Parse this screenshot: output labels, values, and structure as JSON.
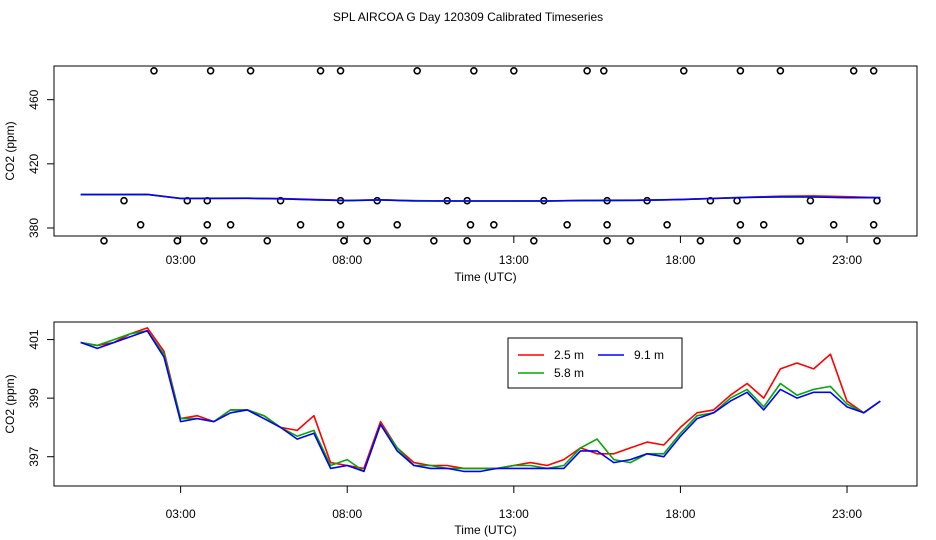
{
  "title": "SPL AIRCOA G  Day 120309  Calibrated Timeseries",
  "chart_data": [
    {
      "type": "scatter+line",
      "xlabel": "Time (UTC)",
      "ylabel": "CO2 (ppm)",
      "xlim": [
        -0.8,
        25.1
      ],
      "ylim": [
        375,
        481
      ],
      "xticks": [
        3,
        8,
        13,
        18,
        23
      ],
      "xtick_labels": [
        "03:00",
        "08:00",
        "13:00",
        "18:00",
        "23:00"
      ],
      "yticks": [
        380,
        420,
        460
      ],
      "ytick_labels": [
        "380",
        "420",
        "460"
      ],
      "outliers": [
        {
          "x": 2.2,
          "y": 478
        },
        {
          "x": 3.9,
          "y": 478
        },
        {
          "x": 5.1,
          "y": 478
        },
        {
          "x": 7.2,
          "y": 478
        },
        {
          "x": 7.8,
          "y": 478
        },
        {
          "x": 10.1,
          "y": 478
        },
        {
          "x": 11.8,
          "y": 478
        },
        {
          "x": 13.0,
          "y": 478
        },
        {
          "x": 15.2,
          "y": 478
        },
        {
          "x": 15.7,
          "y": 478
        },
        {
          "x": 18.1,
          "y": 478
        },
        {
          "x": 19.8,
          "y": 478
        },
        {
          "x": 21.0,
          "y": 478
        },
        {
          "x": 23.2,
          "y": 478
        },
        {
          "x": 23.8,
          "y": 478
        },
        {
          "x": 1.3,
          "y": 397
        },
        {
          "x": 3.2,
          "y": 397
        },
        {
          "x": 3.8,
          "y": 397
        },
        {
          "x": 6.0,
          "y": 397
        },
        {
          "x": 7.8,
          "y": 397
        },
        {
          "x": 8.9,
          "y": 397
        },
        {
          "x": 11.0,
          "y": 397
        },
        {
          "x": 11.6,
          "y": 397
        },
        {
          "x": 13.9,
          "y": 397
        },
        {
          "x": 15.8,
          "y": 397
        },
        {
          "x": 17.0,
          "y": 397
        },
        {
          "x": 18.9,
          "y": 397
        },
        {
          "x": 19.7,
          "y": 397
        },
        {
          "x": 21.9,
          "y": 397
        },
        {
          "x": 23.9,
          "y": 397
        },
        {
          "x": 1.8,
          "y": 382
        },
        {
          "x": 3.8,
          "y": 382
        },
        {
          "x": 4.5,
          "y": 382
        },
        {
          "x": 6.6,
          "y": 382
        },
        {
          "x": 7.8,
          "y": 382
        },
        {
          "x": 9.5,
          "y": 382
        },
        {
          "x": 11.7,
          "y": 382
        },
        {
          "x": 12.4,
          "y": 382
        },
        {
          "x": 14.6,
          "y": 382
        },
        {
          "x": 15.8,
          "y": 382
        },
        {
          "x": 17.6,
          "y": 382
        },
        {
          "x": 19.8,
          "y": 382
        },
        {
          "x": 20.5,
          "y": 382
        },
        {
          "x": 22.6,
          "y": 382
        },
        {
          "x": 23.8,
          "y": 382
        },
        {
          "x": 0.7,
          "y": 372
        },
        {
          "x": 2.9,
          "y": 372
        },
        {
          "x": 3.7,
          "y": 372
        },
        {
          "x": 5.6,
          "y": 372
        },
        {
          "x": 7.9,
          "y": 372
        },
        {
          "x": 8.6,
          "y": 372
        },
        {
          "x": 10.6,
          "y": 372
        },
        {
          "x": 11.6,
          "y": 372
        },
        {
          "x": 13.6,
          "y": 372
        },
        {
          "x": 15.8,
          "y": 372
        },
        {
          "x": 16.5,
          "y": 372
        },
        {
          "x": 18.6,
          "y": 372
        },
        {
          "x": 19.7,
          "y": 372
        },
        {
          "x": 21.6,
          "y": 372
        },
        {
          "x": 23.9,
          "y": 372
        }
      ],
      "line_x": [
        0,
        1,
        2,
        3,
        4,
        5,
        6,
        7,
        8,
        9,
        10,
        11,
        12,
        13,
        14,
        15,
        16,
        17,
        18,
        19,
        20,
        21,
        22,
        23,
        24
      ],
      "series": [
        {
          "name": "2.5 m",
          "color": "#ff0000",
          "values": [
            400.8,
            400.9,
            401.0,
            398.5,
            398.6,
            398.6,
            398.3,
            397.8,
            397.2,
            397.6,
            397.0,
            396.9,
            396.8,
            396.8,
            396.9,
            397.2,
            397.3,
            397.4,
            397.8,
            398.5,
            399.2,
            399.8,
            400.0,
            399.5,
            398.9
          ]
        },
        {
          "name": "5.8 m",
          "color": "#00aa00",
          "values": [
            400.8,
            400.8,
            400.9,
            398.4,
            398.5,
            398.6,
            398.2,
            397.6,
            397.1,
            397.5,
            397.0,
            396.8,
            396.8,
            396.8,
            396.8,
            397.1,
            397.2,
            397.3,
            397.7,
            398.4,
            399.1,
            399.5,
            399.4,
            399.0,
            398.9
          ]
        },
        {
          "name": "9.1 m",
          "color": "#0000ff",
          "values": [
            400.8,
            400.8,
            400.9,
            398.4,
            398.4,
            398.5,
            398.2,
            397.6,
            397.1,
            397.5,
            396.9,
            396.8,
            396.8,
            396.8,
            396.8,
            397.1,
            397.2,
            397.3,
            397.7,
            398.4,
            399.0,
            399.4,
            399.3,
            398.9,
            398.9
          ]
        }
      ]
    },
    {
      "type": "line",
      "xlabel": "Time (UTC)",
      "ylabel": "CO2 (ppm)",
      "xlim": [
        -0.8,
        25.1
      ],
      "ylim": [
        396.0,
        401.6
      ],
      "xticks": [
        3,
        8,
        13,
        18,
        23
      ],
      "xtick_labels": [
        "03:00",
        "08:00",
        "13:00",
        "18:00",
        "23:00"
      ],
      "yticks": [
        397,
        399,
        401
      ],
      "ytick_labels": [
        "397",
        "399",
        "401"
      ],
      "legend": {
        "position": "top-center",
        "entries": [
          "2.5 m",
          "5.8 m",
          "9.1 m"
        ]
      },
      "x": [
        0,
        0.5,
        1,
        1.5,
        2,
        2.5,
        3,
        3.5,
        4,
        4.5,
        5,
        5.5,
        6,
        6.5,
        7,
        7.5,
        8,
        8.5,
        9,
        9.5,
        10,
        10.5,
        11,
        11.5,
        12,
        12.5,
        13,
        13.5,
        14,
        14.5,
        15,
        15.5,
        16,
        16.5,
        17,
        17.5,
        18,
        18.5,
        19,
        19.5,
        20,
        20.5,
        21,
        21.5,
        22,
        22.5,
        23,
        23.5,
        24
      ],
      "series": [
        {
          "name": "2.5 m",
          "color": "#ff0000",
          "values": [
            400.9,
            400.8,
            400.9,
            401.2,
            401.4,
            400.6,
            398.3,
            398.4,
            398.2,
            398.6,
            398.6,
            398.4,
            398.0,
            397.9,
            398.4,
            396.8,
            396.7,
            396.6,
            398.2,
            397.3,
            396.8,
            396.7,
            396.7,
            396.6,
            396.6,
            396.6,
            396.7,
            396.8,
            396.7,
            396.9,
            397.3,
            397.1,
            397.1,
            397.3,
            397.5,
            397.4,
            398.0,
            398.5,
            398.6,
            399.1,
            399.5,
            399.0,
            400.0,
            400.2,
            400.0,
            400.5,
            398.9,
            398.5,
            398.9
          ]
        },
        {
          "name": "5.8 m",
          "color": "#00aa00",
          "values": [
            400.9,
            400.8,
            401.0,
            401.2,
            401.3,
            400.5,
            398.3,
            398.3,
            398.2,
            398.6,
            398.6,
            398.4,
            398.0,
            397.7,
            397.9,
            396.7,
            396.9,
            396.5,
            398.1,
            397.3,
            396.7,
            396.7,
            396.6,
            396.6,
            396.6,
            396.6,
            396.7,
            396.7,
            396.6,
            396.7,
            397.3,
            397.6,
            396.9,
            396.8,
            397.1,
            397.1,
            397.8,
            398.4,
            398.5,
            399.0,
            399.3,
            398.7,
            399.5,
            399.1,
            399.3,
            399.4,
            398.8,
            398.5,
            398.9
          ]
        },
        {
          "name": "9.1 m",
          "color": "#0000ff",
          "values": [
            400.9,
            400.7,
            400.9,
            401.1,
            401.3,
            400.4,
            398.2,
            398.3,
            398.2,
            398.5,
            398.6,
            398.3,
            398.0,
            397.6,
            397.8,
            396.6,
            396.7,
            396.5,
            398.1,
            397.2,
            396.7,
            396.6,
            396.6,
            396.5,
            396.5,
            396.6,
            396.6,
            396.6,
            396.6,
            396.6,
            397.2,
            397.2,
            396.8,
            396.9,
            397.1,
            397.0,
            397.7,
            398.3,
            398.5,
            398.9,
            399.2,
            398.6,
            399.3,
            399.0,
            399.2,
            399.2,
            398.7,
            398.5,
            398.9
          ]
        }
      ]
    }
  ]
}
